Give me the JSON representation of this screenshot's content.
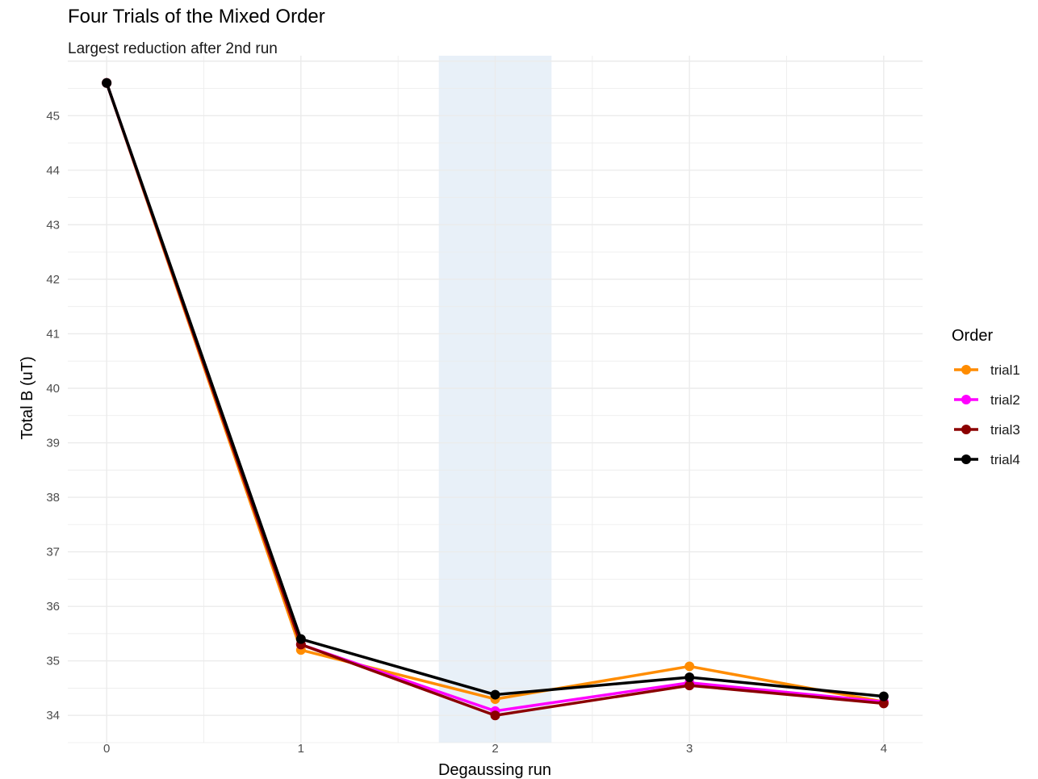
{
  "chart_data": {
    "type": "line",
    "title": "Four Trials of the Mixed Order",
    "subtitle": "Largest reduction after 2nd run",
    "xlabel": "Degaussing run",
    "ylabel": "Total B (uT)",
    "x": [
      0,
      1,
      2,
      3,
      4
    ],
    "xlim": [
      -0.2,
      4.2
    ],
    "ylim": [
      33.5,
      46.1
    ],
    "x_ticks": [
      0,
      1,
      2,
      3,
      4
    ],
    "y_ticks": [
      34,
      35,
      36,
      37,
      38,
      39,
      40,
      41,
      42,
      43,
      44,
      45
    ],
    "grid": true,
    "highlight_band": {
      "x_from": 1.71,
      "x_to": 2.29,
      "color": "#e8f0f8"
    },
    "legend": {
      "title": "Order",
      "placement": "right"
    },
    "series": [
      {
        "name": "trial1",
        "color": "#ff8c00",
        "values": [
          45.6,
          35.2,
          34.3,
          34.9,
          34.25
        ]
      },
      {
        "name": "trial2",
        "color": "#ff00ff",
        "values": [
          45.6,
          35.3,
          34.08,
          34.6,
          34.25
        ]
      },
      {
        "name": "trial3",
        "color": "#8b0000",
        "values": [
          45.6,
          35.3,
          34.0,
          34.55,
          34.22
        ]
      },
      {
        "name": "trial4",
        "color": "#000000",
        "values": [
          45.6,
          35.4,
          34.38,
          34.7,
          34.35
        ]
      }
    ]
  }
}
